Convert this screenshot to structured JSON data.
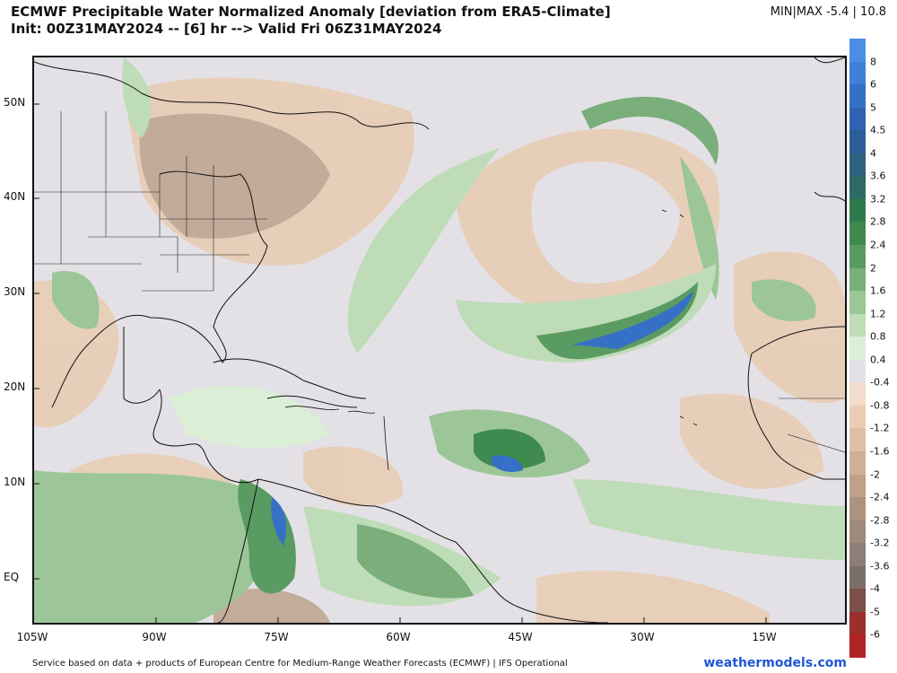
{
  "header": {
    "title_line1": "ECMWF Precipitable Water Normalized Anomaly [deviation from ERA5-Climate]",
    "title_line2": "Init: 00Z31MAY2024 -- [6] hr --> Valid Fri 06Z31MAY2024",
    "minmax": "MIN|MAX  -5.4 | 10.8"
  },
  "axes": {
    "lat_labels": [
      "50N",
      "40N",
      "30N",
      "20N",
      "10N",
      "EQ"
    ],
    "lon_labels": [
      "105W",
      "90W",
      "75W",
      "60W",
      "45W",
      "30W",
      "15W"
    ]
  },
  "colorbar": {
    "labels": [
      "8",
      "6",
      "5",
      "4.5",
      "4",
      "3.6",
      "3.2",
      "2.8",
      "2.4",
      "2",
      "1.6",
      "1.2",
      "0.8",
      "0.4",
      "-0.4",
      "-0.8",
      "-1.2",
      "-1.6",
      "-2",
      "-2.4",
      "-2.8",
      "-3.2",
      "-3.6",
      "-4",
      "-5",
      "-6"
    ],
    "colors": [
      "#4b8ee8",
      "#3f7fd8",
      "#3670c6",
      "#2f62b0",
      "#2c5e96",
      "#2c627e",
      "#2d6a66",
      "#2f7a4a",
      "#3f8a4e",
      "#5a9b62",
      "#7aae7a",
      "#9cc698",
      "#bfdcb8",
      "#dbefd6",
      "#e4e1e6",
      "#f3dccb",
      "#e9cdb6",
      "#dcbfa6",
      "#cdb097",
      "#bda18a",
      "#ad937e",
      "#9f8a7c",
      "#8e7f76",
      "#7c6f69",
      "#7a5048",
      "#9a2f2b",
      "#b02325"
    ]
  },
  "footer": {
    "credit": "Service based on data + products of European Centre for Medium-Range Weather Forecasts (ECMWF) | IFS Operational",
    "brand": "weathermodels.com"
  }
}
